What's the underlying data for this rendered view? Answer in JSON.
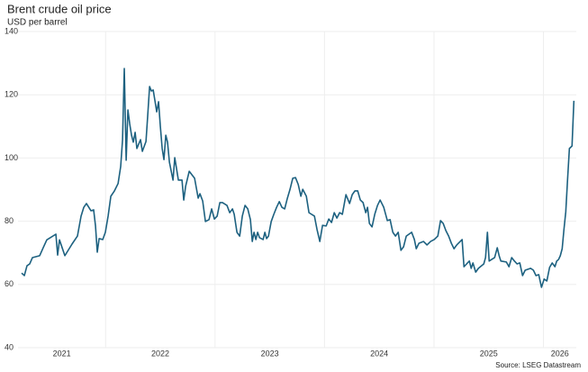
{
  "chart_data": {
    "type": "line",
    "title": "Brent crude oil price",
    "subtitle": "USD per barrel",
    "source": "Source: LSEG Datastream",
    "xlim": [
      2021.2,
      2026.3
    ],
    "xticks": [
      2021,
      2022,
      2023,
      2024,
      2025,
      2026
    ],
    "ylim": [
      40,
      140
    ],
    "yticks": [
      40,
      60,
      80,
      100,
      120,
      140
    ],
    "grid": true,
    "x": [
      2021.233,
      2021.258,
      2021.282,
      2021.307,
      2021.332,
      2021.398,
      2021.43,
      2021.463,
      2021.496,
      2021.546,
      2021.562,
      2021.579,
      2021.628,
      2021.694,
      2021.743,
      2021.776,
      2021.801,
      2021.825,
      2021.867,
      2021.891,
      2021.908,
      2021.924,
      2021.941,
      2021.974,
      2021.998,
      2022.023,
      2022.048,
      2022.081,
      2022.114,
      2022.138,
      2022.155,
      2022.171,
      2022.188,
      2022.204,
      2022.221,
      2022.237,
      2022.253,
      2022.27,
      2022.286,
      2022.319,
      2022.336,
      2022.369,
      2022.385,
      2022.402,
      2022.418,
      2022.435,
      2022.451,
      2022.467,
      2022.484,
      2022.5,
      2022.517,
      2022.533,
      2022.55,
      2022.566,
      2022.583,
      2022.616,
      2022.632,
      2022.665,
      2022.698,
      2022.714,
      2022.731,
      2022.764,
      2022.813,
      2022.846,
      2022.862,
      2022.887,
      2022.912,
      2022.945,
      2022.969,
      2022.994,
      2023.019,
      2023.044,
      2023.068,
      2023.109,
      2023.134,
      2023.159,
      2023.175,
      2023.2,
      2023.225,
      2023.249,
      2023.274,
      2023.299,
      2023.323,
      2023.34,
      2023.356,
      2023.373,
      2023.389,
      2023.406,
      2023.439,
      2023.455,
      2023.471,
      2023.488,
      2023.513,
      2023.537,
      2023.562,
      2023.587,
      2023.611,
      2023.636,
      2023.661,
      2023.685,
      2023.71,
      2023.735,
      2023.76,
      2023.784,
      2023.801,
      2023.834,
      2023.858,
      2023.908,
      2023.932,
      2023.957,
      2023.982,
      2024.015,
      2024.039,
      2024.064,
      2024.089,
      2024.113,
      2024.138,
      2024.163,
      2024.196,
      2024.229,
      2024.253,
      2024.278,
      2024.303,
      2024.327,
      2024.352,
      2024.377,
      2024.393,
      2024.41,
      2024.434,
      2024.459,
      2024.484,
      2024.508,
      2024.541,
      2024.574,
      2024.599,
      2024.624,
      2024.648,
      2024.673,
      2024.698,
      2024.722,
      2024.747,
      2024.796,
      2024.821,
      2024.838,
      2024.862,
      2024.904,
      2024.936,
      2024.969,
      2025.002,
      2025.035,
      2025.06,
      2025.084,
      2025.109,
      2025.134,
      2025.159,
      2025.183,
      2025.208,
      2025.257,
      2025.274,
      2025.298,
      2025.323,
      2025.34,
      2025.356,
      2025.381,
      2025.406,
      2025.455,
      2025.471,
      2025.488,
      2025.504,
      2025.554,
      2025.578,
      2025.595,
      2025.611,
      2025.661,
      2025.685,
      2025.71,
      2025.735,
      2025.759,
      2025.784,
      2025.809,
      2025.833,
      2025.883,
      2025.908,
      2025.932,
      2025.957,
      2025.982,
      2026.006,
      2026.031,
      2026.056,
      2026.08,
      2026.105,
      2026.121,
      2026.138,
      2026.154,
      2026.171,
      2026.187,
      2026.204,
      2026.22,
      2026.237,
      2026.261,
      2026.278
    ],
    "series": [
      {
        "name": "Brent",
        "color": "#1d6180",
        "values": [
          63.6,
          62.8,
          65.9,
          66.5,
          68.5,
          69.1,
          71.6,
          74.1,
          74.8,
          75.9,
          69.3,
          74.1,
          69.1,
          72.8,
          75.3,
          81.6,
          84.4,
          85.6,
          83.3,
          83.6,
          78.5,
          70.2,
          74.5,
          74.2,
          76.5,
          81.6,
          87.9,
          89.6,
          91.9,
          97.3,
          105.8,
          128.3,
          99.3,
          115.2,
          110.7,
          107.2,
          105.0,
          108.1,
          103.0,
          105.8,
          102.1,
          105.2,
          113.5,
          122.6,
          121.2,
          121.5,
          118.1,
          114.6,
          117.8,
          110.1,
          103.0,
          99.5,
          107.2,
          105.0,
          98.7,
          93.0,
          100.1,
          93.0,
          93.0,
          86.7,
          91.0,
          95.8,
          93.6,
          87.3,
          88.7,
          86.4,
          79.9,
          80.5,
          83.9,
          80.7,
          81.6,
          85.9,
          85.9,
          85.0,
          82.7,
          83.9,
          82.2,
          76.5,
          75.3,
          81.6,
          85.0,
          83.9,
          80.5,
          73.6,
          76.5,
          74.2,
          76.5,
          74.8,
          74.2,
          76.5,
          74.5,
          75.3,
          79.9,
          82.2,
          84.4,
          86.2,
          84.4,
          83.9,
          87.3,
          90.1,
          93.6,
          93.8,
          91.6,
          87.9,
          90.1,
          87.9,
          82.7,
          81.6,
          77.3,
          73.6,
          78.7,
          78.5,
          80.7,
          79.6,
          82.7,
          81.0,
          82.7,
          82.2,
          88.4,
          85.6,
          88.4,
          89.6,
          89.6,
          86.7,
          85.9,
          82.7,
          84.4,
          79.3,
          78.2,
          82.2,
          85.0,
          86.7,
          84.4,
          80.2,
          80.5,
          76.5,
          75.3,
          76.5,
          70.8,
          71.9,
          75.3,
          76.5,
          74.2,
          71.3,
          73.0,
          73.6,
          72.5,
          73.6,
          74.2,
          75.3,
          80.2,
          79.3,
          77.0,
          75.3,
          73.0,
          71.3,
          72.5,
          74.2,
          65.6,
          66.5,
          67.4,
          65.1,
          66.8,
          63.9,
          65.1,
          66.5,
          68.5,
          76.5,
          67.4,
          68.5,
          71.6,
          69.1,
          67.4,
          67.1,
          65.6,
          68.5,
          67.4,
          66.5,
          66.8,
          62.8,
          64.5,
          65.1,
          64.5,
          62.8,
          63.1,
          59.1,
          61.7,
          61.1,
          65.4,
          66.8,
          65.6,
          67.4,
          67.9,
          69.1,
          71.3,
          77.3,
          83.0,
          93.0,
          103.0,
          103.8,
          118.1
        ]
      }
    ]
  }
}
